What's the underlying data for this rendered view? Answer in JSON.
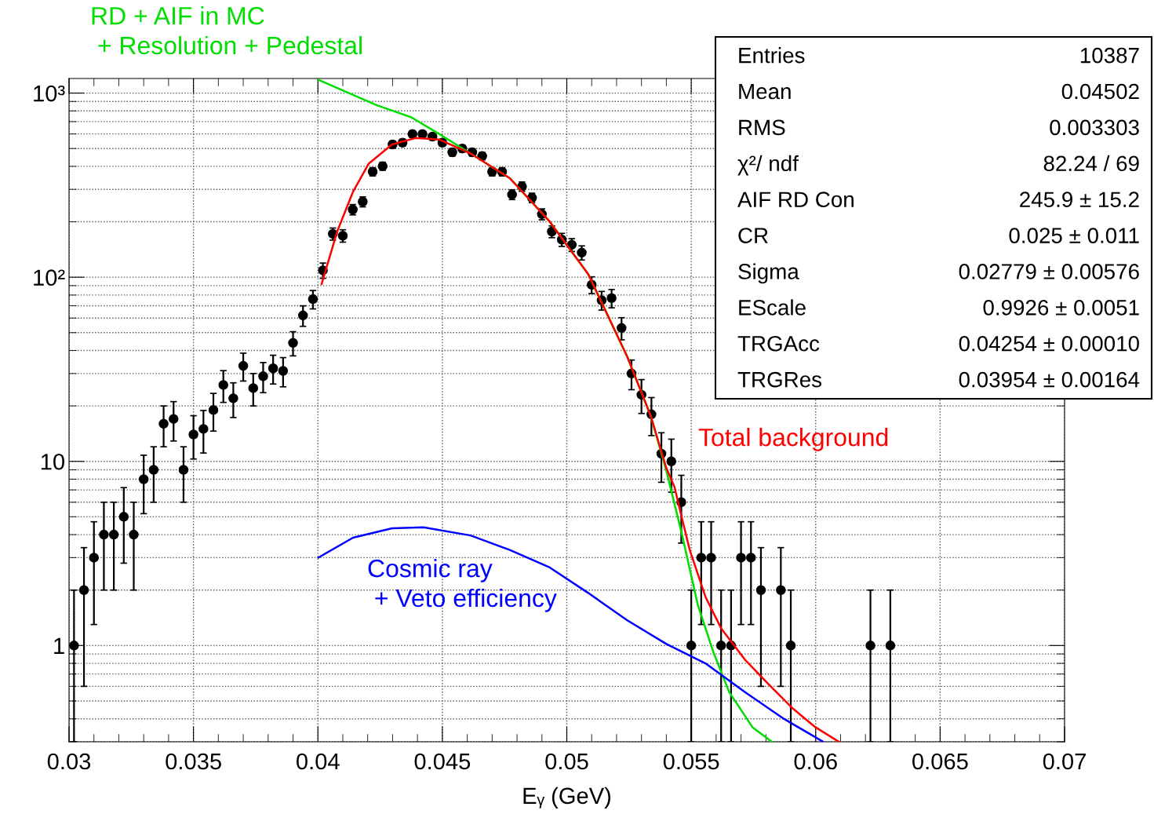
{
  "chart_data": {
    "type": "scatter",
    "xlabel": "Eᵧ (GeV)",
    "xlim": [
      0.03,
      0.07
    ],
    "xticks": [
      0.03,
      0.035,
      0.04,
      0.045,
      0.05,
      0.055,
      0.06,
      0.065,
      0.07
    ],
    "ylim": [
      0.3,
      1200
    ],
    "yticks": [
      {
        "value": 1000,
        "label": "10³"
      },
      {
        "value": 100,
        "label": "10²"
      },
      10,
      1
    ],
    "log": "y",
    "grid": true,
    "line_style": "solid",
    "annotations": [
      "Entries",
      "10387",
      "Mean",
      "0.04502",
      "RMS",
      "0.003303",
      "χ²/ ndf",
      "82.24 / 69",
      "AIF RD Con",
      "245.9 ± 15.2",
      "CR",
      "0.025 ± 0.011",
      "Sigma",
      "0.02779 ± 0.00576",
      "EScale",
      "0.9926 ± 0.0051",
      "TRGAcc",
      "0.04254 ± 0.00010",
      "TRGRes",
      "0.03954 ± 0.00164"
    ],
    "series": [
      {
        "marker": "circle",
        "color": "#000000",
        "x": [
          0.0302,
          0.0306,
          0.031,
          0.0314,
          0.0318,
          0.0322,
          0.0326,
          0.033,
          0.0334,
          0.0338,
          0.0342,
          0.0346,
          0.035,
          0.0354,
          0.0358,
          0.0362,
          0.0366,
          0.037,
          0.0374,
          0.0378,
          0.0382,
          0.0386,
          0.039,
          0.0394,
          0.0398,
          0.0402,
          0.0406,
          0.041,
          0.0414,
          0.0418,
          0.0422,
          0.0426,
          0.043,
          0.0434,
          0.0438,
          0.0442,
          0.0446,
          0.045,
          0.0454,
          0.0458,
          0.0462,
          0.0466,
          0.047,
          0.0474,
          0.0478,
          0.0482,
          0.0486,
          0.049,
          0.0494,
          0.0498,
          0.0502,
          0.0506,
          0.051,
          0.0514,
          0.0518,
          0.0522,
          0.0526,
          0.053,
          0.0534,
          0.0538,
          0.0542,
          0.0546,
          0.055,
          0.0554,
          0.0558,
          0.0562,
          0.0566,
          0.057,
          0.0574,
          0.0578,
          0.0586,
          0.059,
          0.0622,
          0.063
        ],
        "values": [
          1,
          2,
          3,
          4,
          4,
          5,
          4,
          8,
          9,
          16,
          17,
          9,
          14,
          15,
          19,
          26,
          22,
          33,
          25,
          29,
          32,
          31,
          44,
          62,
          76,
          109,
          172,
          168,
          233,
          257,
          374,
          401,
          526,
          538,
          599,
          599,
          580,
          538,
          477,
          500,
          477,
          455,
          374,
          374,
          281,
          311,
          270,
          220,
          177,
          160,
          150,
          136,
          91,
          75,
          77,
          53,
          30,
          23,
          18,
          11,
          10,
          6,
          1,
          3,
          3,
          1,
          1,
          3,
          3,
          2,
          2,
          1,
          1,
          1
        ],
        "errors": [
          [
            0.3,
            2
          ],
          1.4,
          1.7,
          2,
          2,
          2.2,
          2,
          2.8,
          3,
          4,
          4.1,
          3,
          3.7,
          3.9,
          4.4,
          5.1,
          4.7,
          5.7,
          5,
          5.4,
          5.7,
          5.6,
          6.6,
          7.9,
          8.7,
          10.4,
          13,
          13,
          15,
          16,
          19,
          20,
          23,
          23,
          24,
          24,
          24,
          23,
          22,
          22,
          22,
          21,
          19,
          19,
          17,
          18,
          16,
          15,
          13,
          13,
          12,
          12,
          9.5,
          8.7,
          8.8,
          7.3,
          5.5,
          4.8,
          4.2,
          3.3,
          3.2,
          2.4,
          [
            0.3,
            2
          ],
          1.7,
          1.7,
          [
            0.3,
            2
          ],
          [
            0.3,
            2
          ],
          1.7,
          1.7,
          1.4,
          1.4,
          [
            0.3,
            2
          ],
          [
            0.3,
            2
          ],
          [
            0.3,
            2
          ]
        ]
      },
      {
        "type": "line",
        "name": "RD + AIF in MC\n + Resolution + Pedestal",
        "color": "#00dd00",
        "x": [
          0.04002,
          0.04235,
          0.04374,
          0.04487,
          0.04613,
          0.04771,
          0.04928,
          0.05086,
          0.05243,
          0.05337,
          0.054,
          0.05463,
          0.05526,
          0.05589,
          0.05652,
          0.05746,
          0.05824
        ],
        "values": [
          1180,
          860,
          740,
          600,
          470,
          345,
          203,
          104,
          37,
          17.7,
          8.9,
          4,
          1.67,
          0.92,
          0.56,
          0.36,
          0.3
        ]
      },
      {
        "type": "line",
        "name": "Total background",
        "color": "#ff0000",
        "x": [
          0.04015,
          0.04078,
          0.04141,
          0.04204,
          0.04298,
          0.04393,
          0.04487,
          0.04613,
          0.04771,
          0.04928,
          0.05086,
          0.05243,
          0.05337,
          0.054,
          0.05432,
          0.05463,
          0.05494,
          0.05557,
          0.0562,
          0.05715,
          0.05809,
          0.05904,
          0.05999,
          0.06093
        ],
        "values": [
          92,
          178,
          291,
          414,
          526,
          570,
          560,
          470,
          345,
          203,
          104,
          37,
          17.7,
          9.2,
          7.3,
          4.9,
          3.3,
          1.84,
          1.24,
          0.84,
          0.62,
          0.46,
          0.36,
          0.3
        ]
      },
      {
        "type": "line",
        "name": "Cosmic ray\n + Veto efficiency",
        "color": "#0000ff",
        "x": [
          0.04002,
          0.04141,
          0.04298,
          0.04424,
          0.04613,
          0.04771,
          0.04928,
          0.05086,
          0.05243,
          0.054,
          0.05557,
          0.05715,
          0.05872,
          0.0603
        ],
        "values": [
          3.0,
          3.85,
          4.33,
          4.38,
          3.96,
          3.3,
          2.67,
          1.93,
          1.37,
          1.02,
          0.8,
          0.56,
          0.4,
          0.3
        ]
      }
    ]
  }
}
